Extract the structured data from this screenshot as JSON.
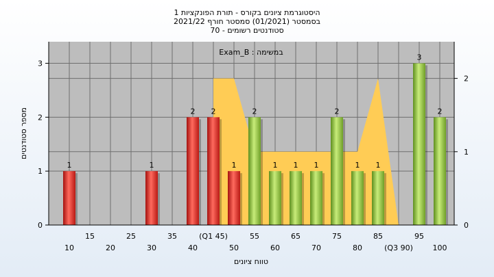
{
  "title_lines": [
    "היסטוגרמת ציונים בקורס - תורת הפונקציות 1",
    "בסמסטר  (01/2021)  סמסטר חורף 2021/22",
    "סטודנטים רשומים - 70"
  ],
  "chart_data": {
    "type": "bar",
    "annotation": "במשימה : Exam_B",
    "xlabel": "טווח ציונים",
    "ylabel": "מספר סטודנטים",
    "ylim": [
      0,
      3.4
    ],
    "y_ticks": [
      0,
      1,
      2,
      3
    ],
    "y2lim": [
      0,
      2.5
    ],
    "y2_ticks": [
      0,
      1,
      2
    ],
    "x_ticks_upper": [
      "15",
      "25",
      "35",
      "(Q1 45)",
      "55",
      "65",
      "75",
      "85",
      "95"
    ],
    "x_ticks_lower": [
      "10",
      "20",
      "30",
      "40",
      "50",
      "60",
      "70",
      "80",
      "(Q3 90)",
      "100"
    ],
    "grid": true,
    "bars": [
      {
        "x": 10,
        "value": 1,
        "color": "red"
      },
      {
        "x": 30,
        "value": 1,
        "color": "red"
      },
      {
        "x": 40,
        "value": 2,
        "color": "red"
      },
      {
        "x": 45,
        "value": 2,
        "color": "red"
      },
      {
        "x": 50,
        "value": 1,
        "color": "red"
      },
      {
        "x": 55,
        "value": 2,
        "color": "green"
      },
      {
        "x": 60,
        "value": 1,
        "color": "green"
      },
      {
        "x": 65,
        "value": 1,
        "color": "green"
      },
      {
        "x": 70,
        "value": 1,
        "color": "green"
      },
      {
        "x": 75,
        "value": 2,
        "color": "green"
      },
      {
        "x": 80,
        "value": 1,
        "color": "green"
      },
      {
        "x": 85,
        "value": 1,
        "color": "green"
      },
      {
        "x": 95,
        "value": 3,
        "color": "green"
      },
      {
        "x": 100,
        "value": 2,
        "color": "green"
      }
    ],
    "area_series": {
      "points": [
        [
          45,
          2
        ],
        [
          50,
          2
        ],
        [
          55,
          1
        ],
        [
          60,
          1
        ],
        [
          65,
          1
        ],
        [
          70,
          1
        ],
        [
          75,
          1
        ],
        [
          80,
          1
        ],
        [
          85,
          2
        ],
        [
          90,
          0
        ],
        [
          95,
          0
        ]
      ]
    },
    "colors": {
      "plot_bg": "#bdbdbd",
      "grid": "#6e6e6e",
      "area": "#ffcc55",
      "red": "#e8302c",
      "green": "#8cc63f"
    }
  }
}
